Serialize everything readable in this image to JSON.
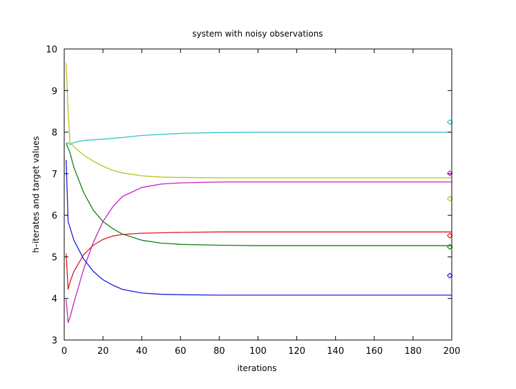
{
  "chart_data": {
    "type": "line",
    "title": "system with noisy observations",
    "xlabel": "iterations",
    "ylabel": "h–iterates and target values",
    "xlim": [
      0,
      200
    ],
    "ylim": [
      3,
      10
    ],
    "xticks": [
      0,
      20,
      40,
      60,
      80,
      100,
      120,
      140,
      160,
      180,
      200
    ],
    "yticks": [
      3,
      4,
      5,
      6,
      7,
      8,
      9,
      10
    ],
    "grid": false,
    "series": [
      {
        "color": "#2ec4c4",
        "x": [
          1,
          2,
          3,
          5,
          10,
          20,
          30,
          40,
          60,
          80,
          100,
          150,
          200
        ],
        "y": [
          7.72,
          7.75,
          7.7,
          7.75,
          7.8,
          7.83,
          7.87,
          7.92,
          7.97,
          7.99,
          8.0,
          8.0,
          8.0
        ]
      },
      {
        "color": "#bfbf20",
        "x": [
          1,
          2,
          3,
          5,
          10,
          15,
          20,
          25,
          30,
          40,
          50,
          60,
          80,
          100,
          150,
          200
        ],
        "y": [
          9.66,
          8.5,
          7.75,
          7.65,
          7.45,
          7.3,
          7.18,
          7.08,
          7.02,
          6.95,
          6.92,
          6.91,
          6.9,
          6.9,
          6.9,
          6.9
        ]
      },
      {
        "color": "#c020c0",
        "x": [
          1,
          2,
          3,
          5,
          10,
          15,
          20,
          25,
          30,
          40,
          50,
          60,
          80,
          100,
          150,
          200
        ],
        "y": [
          3.98,
          3.42,
          3.55,
          3.9,
          4.7,
          5.35,
          5.85,
          6.2,
          6.45,
          6.67,
          6.75,
          6.78,
          6.8,
          6.8,
          6.8,
          6.8
        ]
      },
      {
        "color": "#e01818",
        "x": [
          1,
          2,
          3,
          5,
          10,
          15,
          20,
          25,
          30,
          40,
          50,
          60,
          80,
          100,
          150,
          200
        ],
        "y": [
          5.08,
          4.22,
          4.4,
          4.65,
          5.05,
          5.28,
          5.42,
          5.5,
          5.54,
          5.57,
          5.58,
          5.59,
          5.6,
          5.6,
          5.6,
          5.6
        ]
      },
      {
        "color": "#108010",
        "x": [
          1,
          2,
          3,
          5,
          10,
          15,
          20,
          25,
          30,
          40,
          50,
          60,
          80,
          100,
          150,
          200
        ],
        "y": [
          7.73,
          7.62,
          7.5,
          7.15,
          6.55,
          6.12,
          5.85,
          5.68,
          5.55,
          5.4,
          5.33,
          5.3,
          5.28,
          5.27,
          5.27,
          5.27
        ]
      },
      {
        "color": "#1a1ae0",
        "x": [
          1,
          2,
          3,
          5,
          10,
          15,
          20,
          25,
          30,
          40,
          50,
          60,
          80,
          100,
          150,
          200
        ],
        "y": [
          7.33,
          5.85,
          5.7,
          5.4,
          4.95,
          4.65,
          4.45,
          4.32,
          4.22,
          4.13,
          4.1,
          4.09,
          4.08,
          4.08,
          4.08,
          4.08
        ]
      }
    ],
    "targets": [
      {
        "color": "#2ec4c4",
        "x": 199,
        "y": 8.24
      },
      {
        "color": "#c020c0",
        "x": 199,
        "y": 7.01
      },
      {
        "color": "#bfbf20",
        "x": 199,
        "y": 6.4
      },
      {
        "color": "#e01818",
        "x": 199,
        "y": 5.51
      },
      {
        "color": "#108010",
        "x": 199,
        "y": 5.24
      },
      {
        "color": "#1a1ae0",
        "x": 199,
        "y": 4.55
      }
    ]
  }
}
